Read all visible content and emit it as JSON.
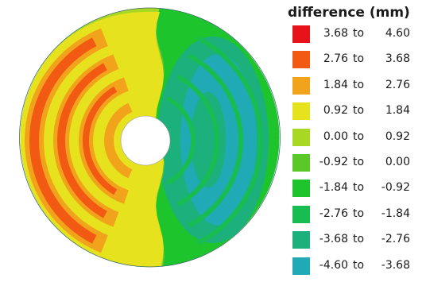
{
  "legend": {
    "title": "difference (mm)",
    "connector": "to",
    "bins": [
      {
        "low": "3.68",
        "high": "4.60",
        "color": "#e8121a"
      },
      {
        "low": "2.76",
        "high": "3.68",
        "color": "#f25a14"
      },
      {
        "low": "1.84",
        "high": "2.76",
        "color": "#f2a31c"
      },
      {
        "low": "0.92",
        "high": "1.84",
        "color": "#e6e21e"
      },
      {
        "low": "0.00",
        "high": "0.92",
        "color": "#a8d824"
      },
      {
        "low": "-0.92",
        "high": "0.00",
        "color": "#5bc82a"
      },
      {
        "low": "-1.84",
        "high": "-0.92",
        "color": "#1ec42c"
      },
      {
        "low": "-2.76",
        "high": "-1.84",
        "color": "#18bc50"
      },
      {
        "low": "-3.68",
        "high": "-2.76",
        "color": "#1cb07c"
      },
      {
        "low": "-4.60",
        "high": "-3.68",
        "color": "#20aab6"
      }
    ]
  }
}
